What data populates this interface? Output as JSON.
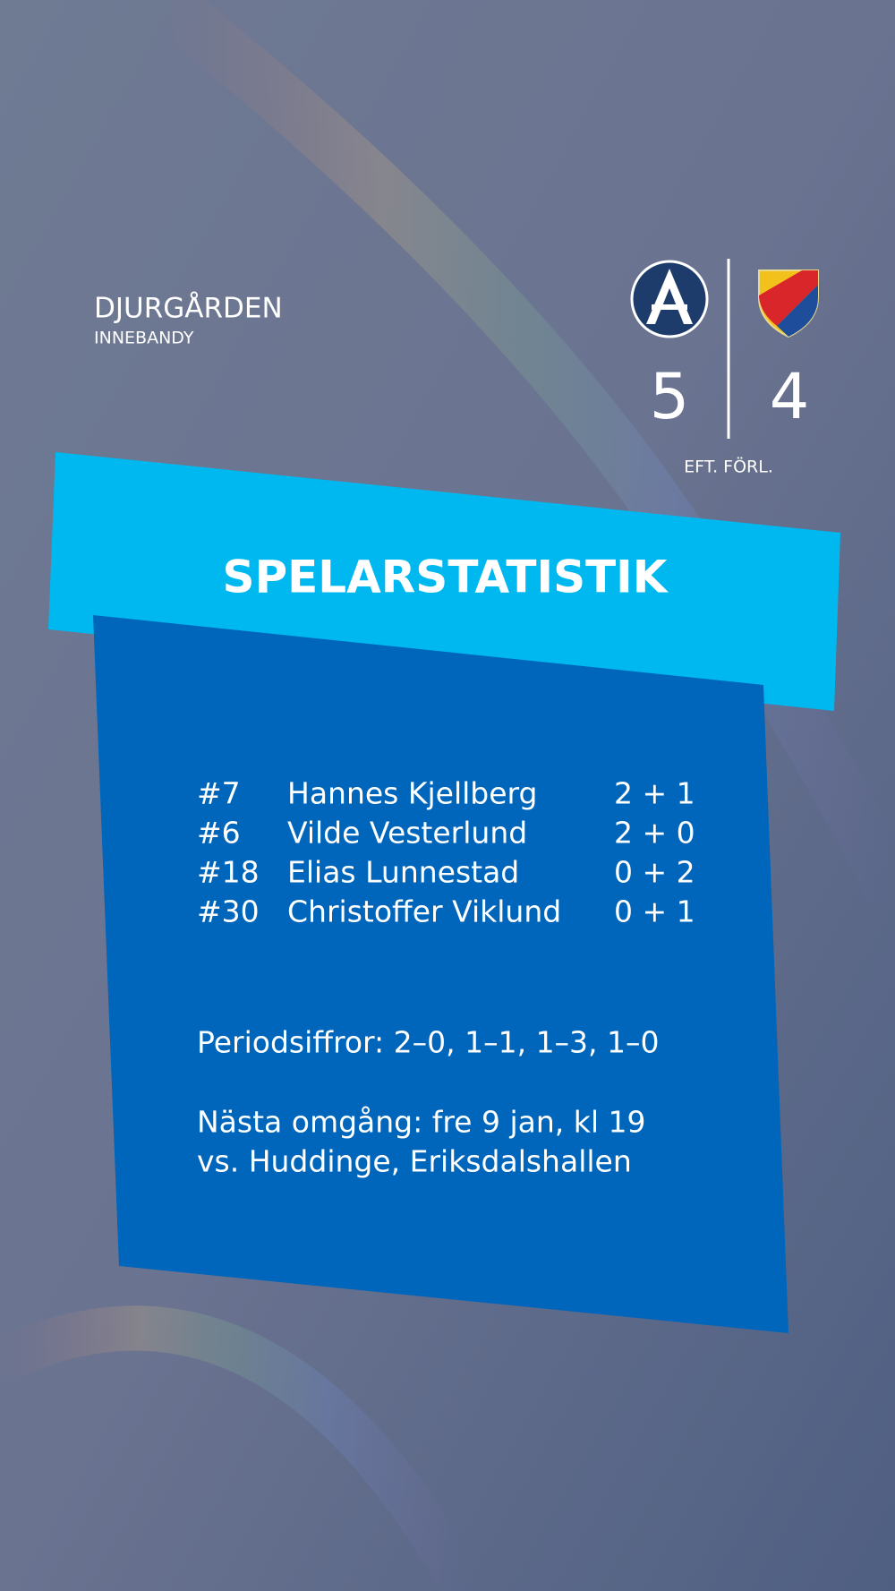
{
  "header": {
    "club": "DJURGÅRDEN",
    "subtitle": "INNEBANDY"
  },
  "score": {
    "home": 5,
    "away": 4,
    "note": "EFT. FÖRL."
  },
  "title": "SPELARSTATISTIK",
  "players": [
    {
      "number": "#7",
      "name": "Hannes Kjellberg",
      "points": "2 + 1"
    },
    {
      "number": "#6",
      "name": "Vilde Vesterlund",
      "points": "2 + 0"
    },
    {
      "number": "#18",
      "name": "Elias Lunnestad",
      "points": "0 + 2"
    },
    {
      "number": "#30",
      "name": "Christoffer Viklund",
      "points": "0 + 1"
    }
  ],
  "periods": "Periodsiffror: 2–0, 1–1, 1–3, 1–0",
  "next_match": [
    "Nästa omgång: fre 9 jan, kl 19",
    "vs. Huddinge, Eriksdalshallen"
  ]
}
